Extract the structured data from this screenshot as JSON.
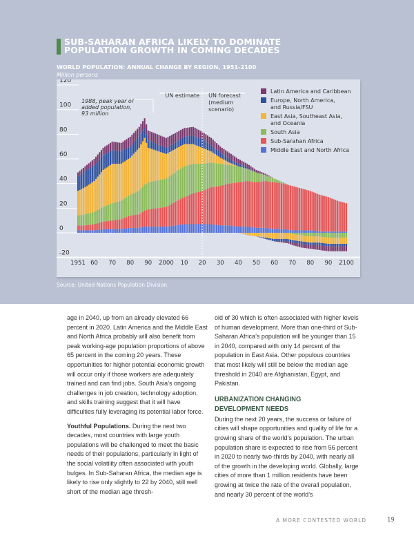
{
  "header": {
    "title_line1": "SUB-SAHARAN AFRICA LIKELY TO DOMINATE",
    "title_line2": "POPULATION GROWTH IN COMING DECADES"
  },
  "chart_data": {
    "type": "bar",
    "stacked": true,
    "title": "WORLD POPULATION: ANNUAL CHANGE BY REGION, 1951-2100",
    "ylabel": "Million persons",
    "ylim": [
      -20,
      120
    ],
    "yticks": [
      "120",
      "100",
      "80",
      "60",
      "40",
      "20",
      "0",
      "-20"
    ],
    "xticks": [
      "1951",
      "60",
      "70",
      "80",
      "90",
      "2000",
      "10",
      "20",
      "30",
      "40",
      "50",
      "60",
      "70",
      "80",
      "90",
      "2100"
    ],
    "annotation": [
      "1988, peak year of",
      "added population,",
      "93 million"
    ],
    "divider": {
      "year": 2020,
      "left_label": "UN estimate",
      "right_label": [
        "UN forecast",
        "(medium",
        "scenario)"
      ]
    },
    "legend_position": "top-right",
    "x": [
      1951,
      1955,
      1960,
      1965,
      1970,
      1975,
      1980,
      1985,
      1988,
      1990,
      2000,
      2005,
      2010,
      2015,
      2020,
      2025,
      2030,
      2035,
      2040,
      2045,
      2050,
      2055,
      2060,
      2065,
      2070,
      2075,
      2080,
      2085,
      2090,
      2095,
      2100
    ],
    "series": [
      {
        "name": "Middle East and North Africa",
        "legend": [
          "Middle East and North Africa"
        ],
        "color": "#5573d6",
        "values": [
          2,
          2,
          2,
          3,
          3,
          3,
          4,
          4,
          5,
          5,
          5,
          6,
          7,
          7,
          7,
          7,
          6,
          6,
          5,
          5,
          4,
          4,
          3,
          3,
          2,
          2,
          2,
          1,
          1,
          1,
          1
        ]
      },
      {
        "name": "Sub-Sarahan Africa",
        "legend": [
          "Sub-Sarahan Africa"
        ],
        "color": "#e55555",
        "values": [
          4,
          4,
          5,
          6,
          7,
          8,
          10,
          11,
          13,
          14,
          16,
          19,
          22,
          25,
          27,
          30,
          32,
          34,
          36,
          37,
          37,
          38,
          38,
          37,
          36,
          34,
          32,
          30,
          28,
          25,
          23
        ]
      },
      {
        "name": "South Asia",
        "legend": [
          "South Asia"
        ],
        "color": "#8cbb5c",
        "values": [
          8,
          9,
          10,
          12,
          14,
          15,
          17,
          19,
          21,
          22,
          23,
          24,
          25,
          24,
          22,
          20,
          18,
          15,
          13,
          10,
          8,
          5,
          3,
          1,
          -1,
          -2,
          -3,
          -3,
          -4,
          -4,
          -4
        ]
      },
      {
        "name": "East Asia, Southeast Asia, and Oceania",
        "legend": [
          "East Asia, Southeast Asia,",
          "and Oceania"
        ],
        "color": "#f2b43a",
        "values": [
          20,
          22,
          25,
          30,
          32,
          30,
          30,
          35,
          38,
          28,
          20,
          19,
          18,
          16,
          13,
          9,
          5,
          2,
          0,
          -2,
          -3,
          -4,
          -5,
          -5,
          -5,
          -5,
          -5,
          -5,
          -5,
          -5,
          -5
        ]
      },
      {
        "name": "Europe, North America, and Russia/FSU",
        "legend": [
          "Europe, North America,",
          "and Russia/FSU"
        ],
        "color": "#2e4f9c",
        "values": [
          12,
          13,
          13,
          12,
          11,
          10,
          9,
          9,
          8,
          6,
          5,
          5,
          6,
          7,
          7,
          5,
          4,
          3,
          2,
          1,
          0,
          -1,
          -2,
          -2,
          -2,
          -2,
          -2,
          -2,
          -2,
          -2,
          -2
        ]
      },
      {
        "name": "Latin America and Caribbean",
        "legend": [
          "Latin America and Caribbean"
        ],
        "color": "#7b3a6e",
        "values": [
          3,
          4,
          5,
          6,
          7,
          7,
          8,
          8,
          8,
          8,
          8,
          8,
          7,
          7,
          6,
          6,
          5,
          5,
          4,
          3,
          2,
          1,
          0,
          -1,
          -2,
          -3,
          -3,
          -4,
          -4,
          -4,
          -4
        ]
      }
    ]
  },
  "source": "Source: United Nations Population Division.",
  "body": {
    "p1": "age in 2040, up from an already elevated 66 percent in 2020. Latin America and the Middle East and North Africa probably will also benefit from peak working-age population proportions of above 65 percent in the coming 20 years. These opportunities for higher potential economic growth will occur only if those workers are adequately trained and can find jobs. South Asia’s ongoing challenges in job creation, technology adoption, and skills training suggest that it will have difficulties fully leveraging its potential labor force.",
    "p2_bold": "Youthful Populations.",
    "p2": " During the next two decades, most countries with large youth populations will be challenged to meet the basic needs of their populations, particularly in light of the social volatility often associated with youth bulges. In Sub-Saharan Africa, the median age is likely to rise only slightly to 22 by 2040, still well short of the median age threshold of 30 which is often associated with higher levels of human development. More than one-third of Sub-Saharan Africa’s population will be younger than 15 in 2040, compared with only 14 percent of the population in East Asia. Other populous countries that most likely will still be below the median age threshold in 2040 are Afghanistan, Egypt, and Pakistan.",
    "h3": "URBANIZATION CHANGING DEVELOPMENT NEEDS",
    "p3": "During the next 20 years, the success or failure of cities will shape opportunities and quality of life for a growing share of the world’s population. The urban population share is expected to rise from 56 percent in 2020 to nearly two-thirds by 2040, with nearly all of the growth in the developing world. Globally, large cities of more than 1 million residents have been growing at twice the rate of the overall population, and nearly 30 percent of the world’s"
  },
  "footer": {
    "running_title": "A MORE CONTESTED WORLD",
    "page": "19"
  }
}
